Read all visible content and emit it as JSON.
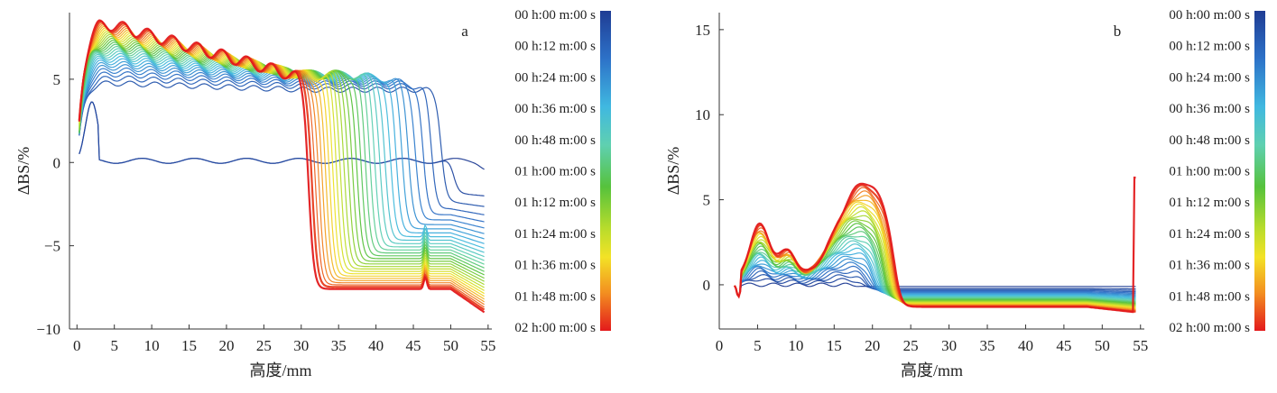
{
  "chart_data": [
    {
      "type": "line",
      "panel_label": "a",
      "xlabel": "高度/mm",
      "ylabel": "ΔBS/%",
      "xlim": [
        -1,
        55.5
      ],
      "ylim": [
        -10,
        9
      ],
      "xticks": [
        0,
        5,
        10,
        15,
        20,
        25,
        30,
        35,
        40,
        45,
        50,
        55
      ],
      "yticks": [
        -10,
        -5,
        0,
        5
      ],
      "tick_labels_x": [
        "0",
        "5",
        "10",
        "15",
        "20",
        "25",
        "30",
        "35",
        "40",
        "45",
        "50",
        "55"
      ],
      "tick_labels_y": [
        "−10",
        "−5",
        "0",
        "5"
      ],
      "legend_position": "right",
      "colorbar_labels": [
        "00 h:00 m:00 s",
        "00 h:12 m:00 s",
        "00 h:24 m:00 s",
        "00 h:36 m:00 s",
        "00 h:48 m:00 s",
        "01 h:00 m:00 s",
        "01 h:12 m:00 s",
        "01 h:24 m:00 s",
        "01 h:36 m:00 s",
        "01 h:48 m:00 s",
        "02 h:00 m:00 s"
      ],
      "num_curves": 30,
      "series_summary": {
        "early_curve_max": 3.5,
        "final_plateau_start": 8.5,
        "final_plateau_end": 5.0,
        "front_start_mm": 54,
        "front_end_mm": 31,
        "final_tail": -8.0,
        "end_tail": -9.2
      }
    },
    {
      "type": "line",
      "panel_label": "b",
      "xlabel": "高度/mm",
      "ylabel": "ΔBS/%",
      "xlim": [
        0,
        55.5
      ],
      "ylim": [
        -2.6,
        16
      ],
      "xticks": [
        0,
        5,
        10,
        15,
        20,
        25,
        30,
        35,
        40,
        45,
        50,
        55
      ],
      "yticks": [
        0,
        5,
        10,
        15
      ],
      "tick_labels_x": [
        "0",
        "5",
        "10",
        "15",
        "20",
        "25",
        "30",
        "35",
        "40",
        "45",
        "50",
        "55"
      ],
      "tick_labels_y": [
        "0",
        "5",
        "10",
        "15"
      ],
      "legend_position": "right",
      "colorbar_labels": [
        "00 h:00 m:00 s",
        "00 h:12 m:00 s",
        "00 h:24 m:00 s",
        "00 h:36 m:00 s",
        "00 h:48 m:00 s",
        "01 h:00 m:00 s",
        "01 h:12 m:00 s",
        "01 h:24 m:00 s",
        "01 h:36 m:00 s",
        "01 h:48 m:00 s",
        "02 h:00 m:00 s"
      ],
      "num_curves": 30,
      "series_summary": {
        "left_peak_final": 3.5,
        "main_peak_final": 6.0,
        "main_peak_at_mm": 19,
        "drop_at_mm": 23,
        "tail_final": -1.5,
        "end_spike": 6.3
      }
    }
  ]
}
